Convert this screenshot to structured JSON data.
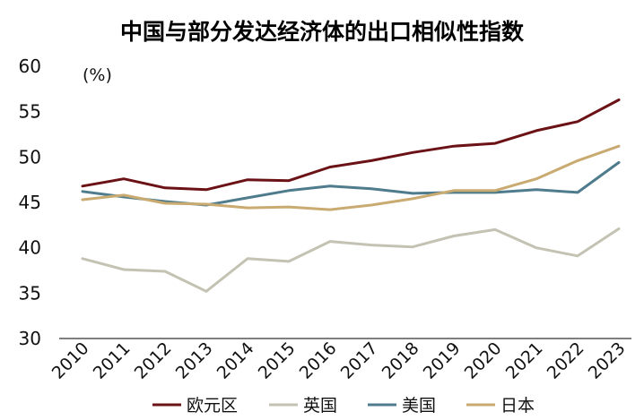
{
  "chart_data": {
    "type": "line",
    "title": "中国与部分发达经济体的出口相似性指数",
    "unit_label": "(%)",
    "xlabel": "",
    "ylabel": "",
    "ylim": [
      30,
      60
    ],
    "yticks": [
      30,
      35,
      40,
      45,
      50,
      55,
      60
    ],
    "grid": false,
    "legend_position": "bottom",
    "x": [
      "2010",
      "2011",
      "2012",
      "2013",
      "2014",
      "2015",
      "2016",
      "2017",
      "2018",
      "2019",
      "2020",
      "2021",
      "2022",
      "2023"
    ],
    "series": [
      {
        "name": "欧元区",
        "color": "#6b1216",
        "values": [
          46.8,
          47.6,
          46.6,
          46.4,
          47.5,
          47.4,
          48.9,
          49.6,
          50.5,
          51.2,
          51.5,
          52.9,
          53.9,
          56.3
        ]
      },
      {
        "name": "英国",
        "color": "#c4c3b3",
        "values": [
          38.8,
          37.6,
          37.4,
          35.2,
          38.8,
          38.5,
          40.7,
          40.3,
          40.1,
          41.3,
          42.0,
          40.0,
          39.1,
          42.1
        ]
      },
      {
        "name": "美国",
        "color": "#4f7c8c",
        "values": [
          46.2,
          45.6,
          45.1,
          44.7,
          45.5,
          46.3,
          46.8,
          46.5,
          46.0,
          46.1,
          46.1,
          46.4,
          46.1,
          49.4
        ]
      },
      {
        "name": "日本",
        "color": "#c9aa71",
        "values": [
          45.3,
          45.8,
          44.9,
          44.8,
          44.4,
          44.5,
          44.2,
          44.7,
          45.4,
          46.3,
          46.3,
          47.6,
          49.6,
          51.2
        ]
      }
    ]
  }
}
